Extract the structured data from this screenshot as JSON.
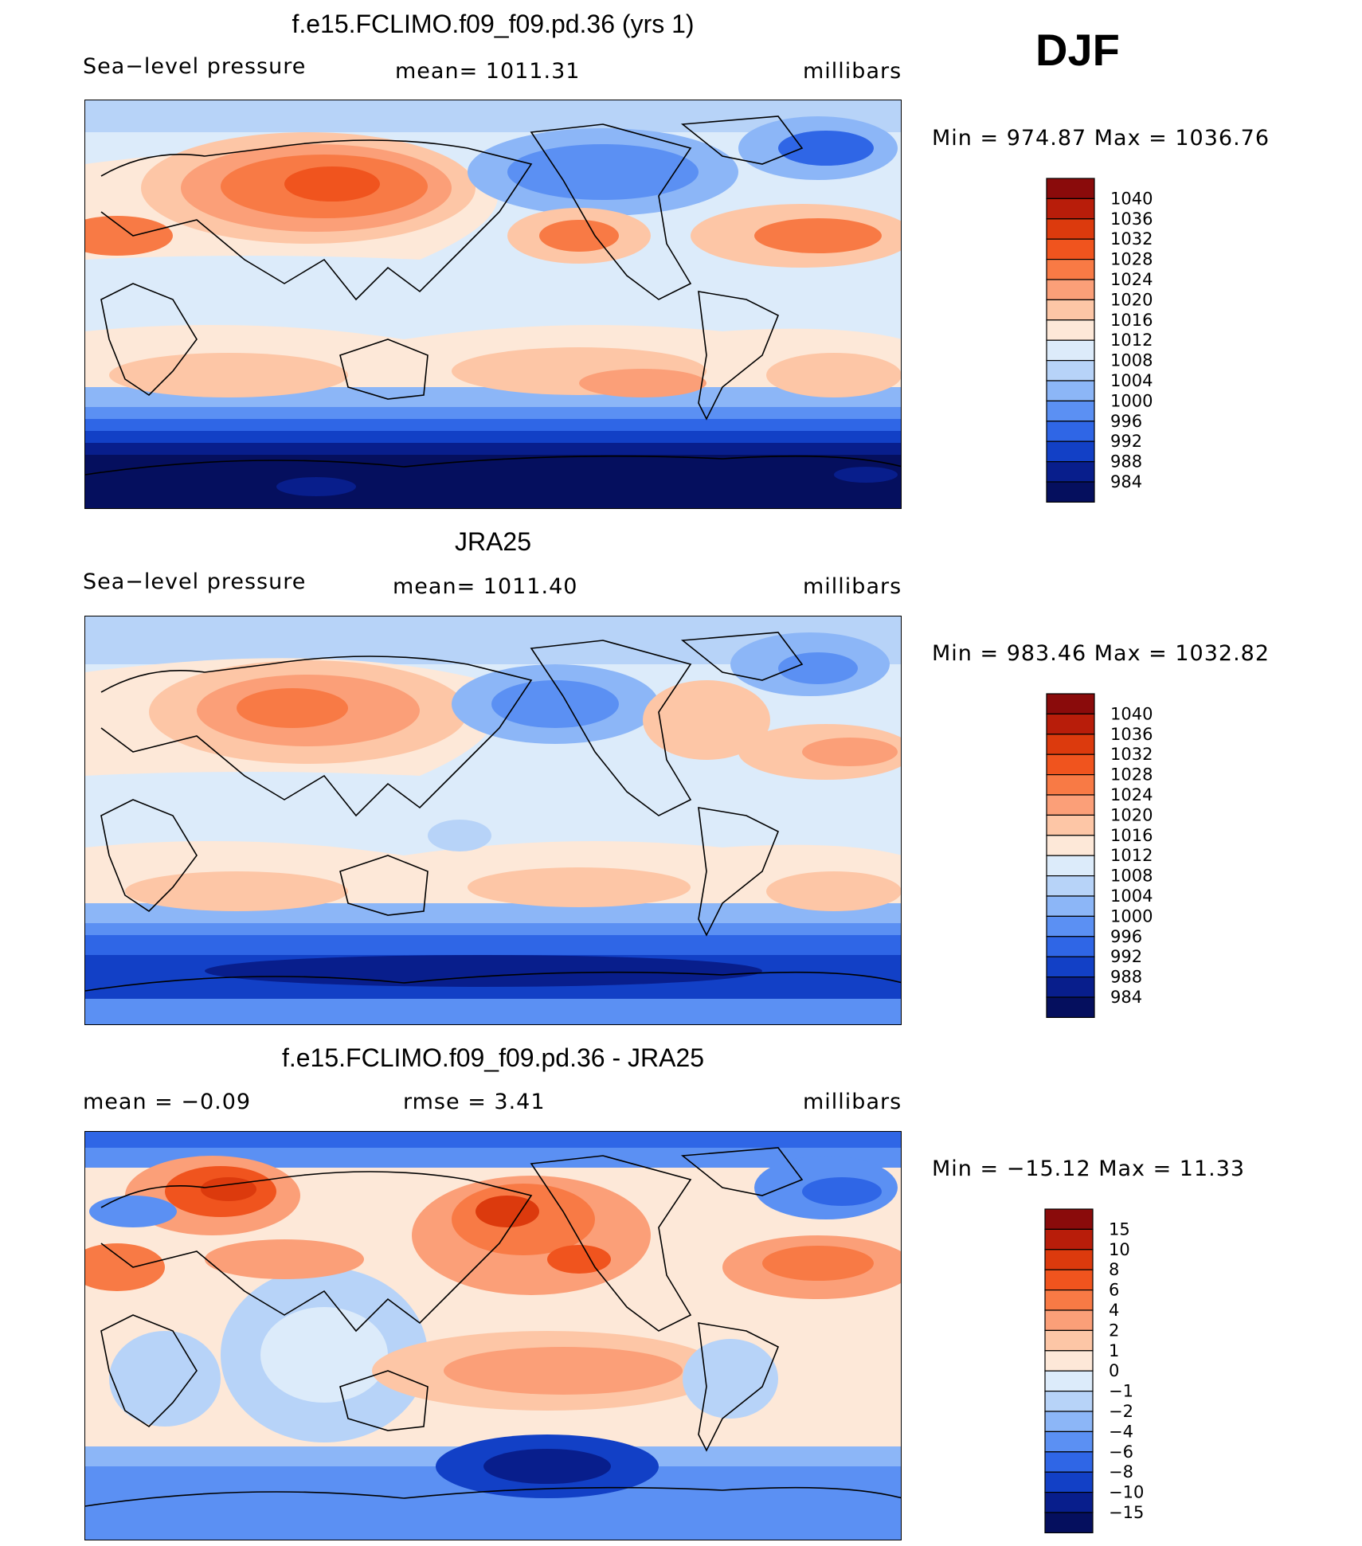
{
  "season": "DJF",
  "panels": [
    {
      "title": "f.e15.FCLIMO.f09_f09.pd.36 (yrs 1)",
      "left_label": "Sea−level pressure",
      "center_label": "mean=  1011.31",
      "units": "millibars",
      "min_max": "Min  =  974.87  Max  =  1036.76"
    },
    {
      "title": "JRA25",
      "left_label": "Sea−level pressure",
      "center_label": "mean=  1011.40",
      "units": "millibars",
      "min_max": "Min  =  983.46  Max  =  1032.82"
    },
    {
      "title": "f.e15.FCLIMO.f09_f09.pd.36 - JRA25",
      "left_label": "mean  =     −0.09",
      "center_label": "rmse  =      3.41",
      "units": "millibars",
      "min_max": "Min  =  −15.12  Max  =    11.33"
    }
  ],
  "chart_data": [
    {
      "type": "heatmap",
      "title": "f.e15.FCLIMO.f09_f09.pd.36 (yrs 1)",
      "variable": "Sea-level pressure",
      "units": "millibars",
      "mean": 1011.31,
      "min": 974.87,
      "max": 1036.76,
      "colorbar_labels": [
        "1040",
        "1036",
        "1032",
        "1028",
        "1024",
        "1020",
        "1016",
        "1012",
        "1008",
        "1004",
        "1000",
        "996",
        "992",
        "988",
        "984"
      ],
      "colorbar_colors": [
        "#8a0b0b",
        "#b81d0a",
        "#dc3a0d",
        "#f0541e",
        "#f87a45",
        "#fb9f78",
        "#fdc6a6",
        "#fde8d8",
        "#dcebfa",
        "#b7d3f8",
        "#8cb6f7",
        "#5b90f3",
        "#2f66e6",
        "#1240c6",
        "#081e8c",
        "#050f5e"
      ]
    },
    {
      "type": "heatmap",
      "title": "JRA25",
      "variable": "Sea-level pressure",
      "units": "millibars",
      "mean": 1011.4,
      "min": 983.46,
      "max": 1032.82,
      "colorbar_labels": [
        "1040",
        "1036",
        "1032",
        "1028",
        "1024",
        "1020",
        "1016",
        "1012",
        "1008",
        "1004",
        "1000",
        "996",
        "992",
        "988",
        "984"
      ],
      "colorbar_colors": [
        "#8a0b0b",
        "#b81d0a",
        "#dc3a0d",
        "#f0541e",
        "#f87a45",
        "#fb9f78",
        "#fdc6a6",
        "#fde8d8",
        "#dcebfa",
        "#b7d3f8",
        "#8cb6f7",
        "#5b90f3",
        "#2f66e6",
        "#1240c6",
        "#081e8c",
        "#050f5e"
      ]
    },
    {
      "type": "heatmap",
      "title": "f.e15.FCLIMO.f09_f09.pd.36 - JRA25",
      "units": "millibars",
      "mean": -0.09,
      "rmse": 3.41,
      "min": -15.12,
      "max": 11.33,
      "colorbar_labels": [
        "15",
        "10",
        "8",
        "6",
        "4",
        "2",
        "1",
        "0",
        "−1",
        "−2",
        "−4",
        "−6",
        "−8",
        "−10",
        "−15"
      ],
      "colorbar_colors": [
        "#8a0b0b",
        "#b81d0a",
        "#dc3a0d",
        "#f0541e",
        "#f87a45",
        "#fb9f78",
        "#fdc6a6",
        "#fde8d8",
        "#dcebfa",
        "#b7d3f8",
        "#8cb6f7",
        "#5b90f3",
        "#2f66e6",
        "#1240c6",
        "#081e8c",
        "#050f5e"
      ]
    }
  ]
}
